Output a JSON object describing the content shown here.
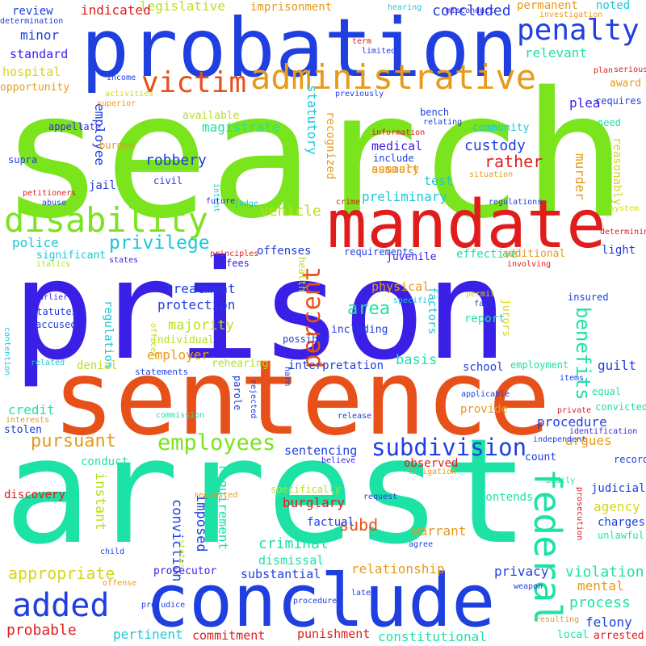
{
  "palette": {
    "blue": "#1f3fe0",
    "indigo": "#3a1fe6",
    "green": "#7ae41c",
    "lime": "#b6e21a",
    "teal": "#1de2a6",
    "cyan": "#1cc8d6",
    "red": "#e01c1c",
    "orange": "#e8501a",
    "amber": "#e89a1a",
    "yellow": "#d6d61c"
  },
  "words": [
    {
      "text": "search",
      "color": "green"
    },
    {
      "text": "prison",
      "color": "indigo"
    },
    {
      "text": "arrest",
      "color": "teal"
    },
    {
      "text": "sentence",
      "color": "orange"
    },
    {
      "text": "probation",
      "color": "blue"
    },
    {
      "text": "mandate",
      "color": "red"
    },
    {
      "text": "conclude",
      "color": "blue"
    },
    {
      "text": "disability",
      "color": "green"
    },
    {
      "text": "administrative",
      "color": "amber"
    },
    {
      "text": "penalty",
      "color": "blue"
    },
    {
      "text": "victim",
      "color": "orange"
    },
    {
      "text": "federal",
      "color": "teal"
    },
    {
      "text": "added",
      "color": "blue"
    },
    {
      "text": "employees",
      "color": "green"
    },
    {
      "text": "subdivision",
      "color": "blue"
    },
    {
      "text": "percent",
      "color": "orange"
    },
    {
      "text": "pursuant",
      "color": "amber"
    },
    {
      "text": "privilege",
      "color": "cyan"
    },
    {
      "text": "benefits",
      "color": "teal"
    },
    {
      "text": "appropriate",
      "color": "yellow"
    },
    {
      "text": "concluded",
      "color": "blue"
    },
    {
      "text": "legislative",
      "color": "lime"
    },
    {
      "text": "indicated",
      "color": "red"
    },
    {
      "text": "imprisonment",
      "color": "amber"
    },
    {
      "text": "permanent",
      "color": "amber"
    },
    {
      "text": "noted",
      "color": "cyan"
    },
    {
      "text": "review",
      "color": "blue"
    },
    {
      "text": "minor",
      "color": "blue"
    },
    {
      "text": "standard",
      "color": "indigo"
    },
    {
      "text": "hospital",
      "color": "yellow"
    },
    {
      "text": "opportunity",
      "color": "amber"
    },
    {
      "text": "relevant",
      "color": "teal"
    },
    {
      "text": "award",
      "color": "amber"
    },
    {
      "text": "plea",
      "color": "indigo"
    },
    {
      "text": "rather",
      "color": "red"
    },
    {
      "text": "custody",
      "color": "blue"
    },
    {
      "text": "medical",
      "color": "indigo"
    },
    {
      "text": "robbery",
      "color": "blue"
    },
    {
      "text": "magistrate",
      "color": "teal"
    },
    {
      "text": "employee",
      "color": "blue"
    },
    {
      "text": "statutory",
      "color": "cyan"
    },
    {
      "text": "community",
      "color": "cyan"
    },
    {
      "text": "summary",
      "color": "amber"
    },
    {
      "text": "test",
      "color": "cyan"
    },
    {
      "text": "preliminary",
      "color": "cyan"
    },
    {
      "text": "murder",
      "color": "amber"
    },
    {
      "text": "reasonably",
      "color": "yellow"
    },
    {
      "text": "vehicle",
      "color": "lime"
    },
    {
      "text": "police",
      "color": "cyan"
    },
    {
      "text": "offenses",
      "color": "blue"
    },
    {
      "text": "juvenile",
      "color": "indigo"
    },
    {
      "text": "effective",
      "color": "teal"
    },
    {
      "text": "additional",
      "color": "amber"
    },
    {
      "text": "light",
      "color": "blue"
    },
    {
      "text": "treatment",
      "color": "blue"
    },
    {
      "text": "protection",
      "color": "blue"
    },
    {
      "text": "majority",
      "color": "lime"
    },
    {
      "text": "employer",
      "color": "amber"
    },
    {
      "text": "individual",
      "color": "lime"
    },
    {
      "text": "physical",
      "color": "amber"
    },
    {
      "text": "area",
      "color": "teal"
    },
    {
      "text": "basis",
      "color": "teal"
    },
    {
      "text": "report",
      "color": "teal"
    },
    {
      "text": "including",
      "color": "blue"
    },
    {
      "text": "factors",
      "color": "cyan"
    },
    {
      "text": "insured",
      "color": "blue"
    },
    {
      "text": "jurors",
      "color": "yellow"
    },
    {
      "text": "possible",
      "color": "blue"
    },
    {
      "text": "regulation",
      "color": "cyan"
    },
    {
      "text": "rehearing",
      "color": "lime"
    },
    {
      "text": "denial",
      "color": "lime"
    },
    {
      "text": "interpretation",
      "color": "blue"
    },
    {
      "text": "school",
      "color": "blue"
    },
    {
      "text": "employment",
      "color": "teal"
    },
    {
      "text": "guilt",
      "color": "blue"
    },
    {
      "text": "credit",
      "color": "teal"
    },
    {
      "text": "stolen",
      "color": "blue"
    },
    {
      "text": "provide",
      "color": "amber"
    },
    {
      "text": "procedure",
      "color": "blue"
    },
    {
      "text": "argues",
      "color": "amber"
    },
    {
      "text": "sentencing",
      "color": "blue"
    },
    {
      "text": "observed",
      "color": "red"
    },
    {
      "text": "count",
      "color": "blue"
    },
    {
      "text": "records",
      "color": "blue"
    },
    {
      "text": "conduct",
      "color": "teal"
    },
    {
      "text": "discovery",
      "color": "red"
    },
    {
      "text": "instant",
      "color": "lime"
    },
    {
      "text": "requirement",
      "color": "teal"
    },
    {
      "text": "imposed",
      "color": "blue"
    },
    {
      "text": "conviction",
      "color": "blue"
    },
    {
      "text": "burglary",
      "color": "red"
    },
    {
      "text": "subd",
      "color": "orange"
    },
    {
      "text": "warrant",
      "color": "amber"
    },
    {
      "text": "criminal",
      "color": "teal"
    },
    {
      "text": "factual",
      "color": "blue"
    },
    {
      "text": "contends",
      "color": "teal"
    },
    {
      "text": "agency",
      "color": "yellow"
    },
    {
      "text": "judicial",
      "color": "blue"
    },
    {
      "text": "charges",
      "color": "blue"
    },
    {
      "text": "unlawful",
      "color": "teal"
    },
    {
      "text": "dismissal",
      "color": "teal"
    },
    {
      "text": "substantial",
      "color": "blue"
    },
    {
      "text": "relationship",
      "color": "amber"
    },
    {
      "text": "prosecutor",
      "color": "indigo"
    },
    {
      "text": "privacy",
      "color": "blue"
    },
    {
      "text": "violation",
      "color": "teal"
    },
    {
      "text": "mental",
      "color": "amber"
    },
    {
      "text": "process",
      "color": "teal"
    },
    {
      "text": "felony",
      "color": "blue"
    },
    {
      "text": "probable",
      "color": "red"
    },
    {
      "text": "commitment",
      "color": "red"
    },
    {
      "text": "pertinent",
      "color": "cyan"
    },
    {
      "text": "punishment",
      "color": "red"
    },
    {
      "text": "constitutional",
      "color": "teal"
    },
    {
      "text": "local",
      "color": "teal"
    },
    {
      "text": "arrested",
      "color": "red"
    },
    {
      "text": "hearing",
      "color": "cyan"
    },
    {
      "text": "determination",
      "color": "blue"
    },
    {
      "text": "misconduct",
      "color": "indigo"
    },
    {
      "text": "investigation",
      "color": "amber"
    },
    {
      "text": "term",
      "color": "red"
    },
    {
      "text": "limited",
      "color": "blue"
    },
    {
      "text": "serious",
      "color": "red"
    },
    {
      "text": "plan",
      "color": "red"
    },
    {
      "text": "income",
      "color": "blue"
    },
    {
      "text": "previously",
      "color": "blue"
    },
    {
      "text": "activities",
      "color": "yellow"
    },
    {
      "text": "superior",
      "color": "amber"
    },
    {
      "text": "available",
      "color": "lime"
    },
    {
      "text": "bench",
      "color": "blue"
    },
    {
      "text": "relating",
      "color": "blue"
    },
    {
      "text": "requires",
      "color": "blue"
    },
    {
      "text": "need",
      "color": "teal"
    },
    {
      "text": "appellate",
      "color": "indigo"
    },
    {
      "text": "burden",
      "color": "amber"
    },
    {
      "text": "recognized",
      "color": "amber"
    },
    {
      "text": "information",
      "color": "red"
    },
    {
      "text": "include",
      "color": "blue"
    },
    {
      "text": "assault",
      "color": "amber"
    },
    {
      "text": "situation",
      "color": "amber"
    },
    {
      "text": "supra",
      "color": "blue"
    },
    {
      "text": "civil",
      "color": "blue"
    },
    {
      "text": "jail",
      "color": "blue"
    },
    {
      "text": "petitioners",
      "color": "red"
    },
    {
      "text": "intent",
      "color": "cyan"
    },
    {
      "text": "abuse",
      "color": "blue"
    },
    {
      "text": "future",
      "color": "indigo"
    },
    {
      "text": "judge",
      "color": "cyan"
    },
    {
      "text": "crime",
      "color": "red"
    },
    {
      "text": "regulations",
      "color": "blue"
    },
    {
      "text": "system",
      "color": "yellow"
    },
    {
      "text": "determining",
      "color": "red"
    },
    {
      "text": "significant",
      "color": "cyan"
    },
    {
      "text": "fees",
      "color": "indigo"
    },
    {
      "text": "principles",
      "color": "red"
    },
    {
      "text": "italics",
      "color": "lime"
    },
    {
      "text": "states",
      "color": "indigo"
    },
    {
      "text": "health",
      "color": "lime"
    },
    {
      "text": "requirements",
      "color": "blue"
    },
    {
      "text": "involving",
      "color": "red"
    },
    {
      "text": "earlier",
      "color": "indigo"
    },
    {
      "text": "statutes",
      "color": "blue"
    },
    {
      "text": "accused",
      "color": "blue"
    },
    {
      "text": "officer",
      "color": "yellow"
    },
    {
      "text": "specific",
      "color": "cyan"
    },
    {
      "text": "permit",
      "color": "yellow"
    },
    {
      "text": "fair",
      "color": "blue"
    },
    {
      "text": "contention",
      "color": "cyan"
    },
    {
      "text": "related",
      "color": "cyan"
    },
    {
      "text": "statements",
      "color": "blue"
    },
    {
      "text": "harm",
      "color": "blue"
    },
    {
      "text": "items",
      "color": "blue"
    },
    {
      "text": "equal",
      "color": "teal"
    },
    {
      "text": "convicted",
      "color": "teal"
    },
    {
      "text": "applicable",
      "color": "blue"
    },
    {
      "text": "private",
      "color": "red"
    },
    {
      "text": "interests",
      "color": "amber"
    },
    {
      "text": "commission",
      "color": "teal"
    },
    {
      "text": "parole",
      "color": "blue"
    },
    {
      "text": "rejected",
      "color": "blue"
    },
    {
      "text": "release",
      "color": "blue"
    },
    {
      "text": "identification",
      "color": "indigo"
    },
    {
      "text": "independent",
      "color": "blue"
    },
    {
      "text": "believe",
      "color": "indigo"
    },
    {
      "text": "litigation",
      "color": "amber"
    },
    {
      "text": "specifically",
      "color": "lime"
    },
    {
      "text": "request",
      "color": "blue"
    },
    {
      "text": "bodily",
      "color": "teal"
    },
    {
      "text": "requested",
      "color": "amber"
    },
    {
      "text": "alternative",
      "color": "teal"
    },
    {
      "text": "status",
      "color": "lime"
    },
    {
      "text": "child",
      "color": "blue"
    },
    {
      "text": "agree",
      "color": "blue"
    },
    {
      "text": "prosecution",
      "color": "red"
    },
    {
      "text": "offense",
      "color": "amber"
    },
    {
      "text": "prejudice",
      "color": "blue"
    },
    {
      "text": "procedures",
      "color": "blue"
    },
    {
      "text": "later",
      "color": "blue"
    },
    {
      "text": "weapon",
      "color": "blue"
    },
    {
      "text": "resulting",
      "color": "amber"
    }
  ]
}
